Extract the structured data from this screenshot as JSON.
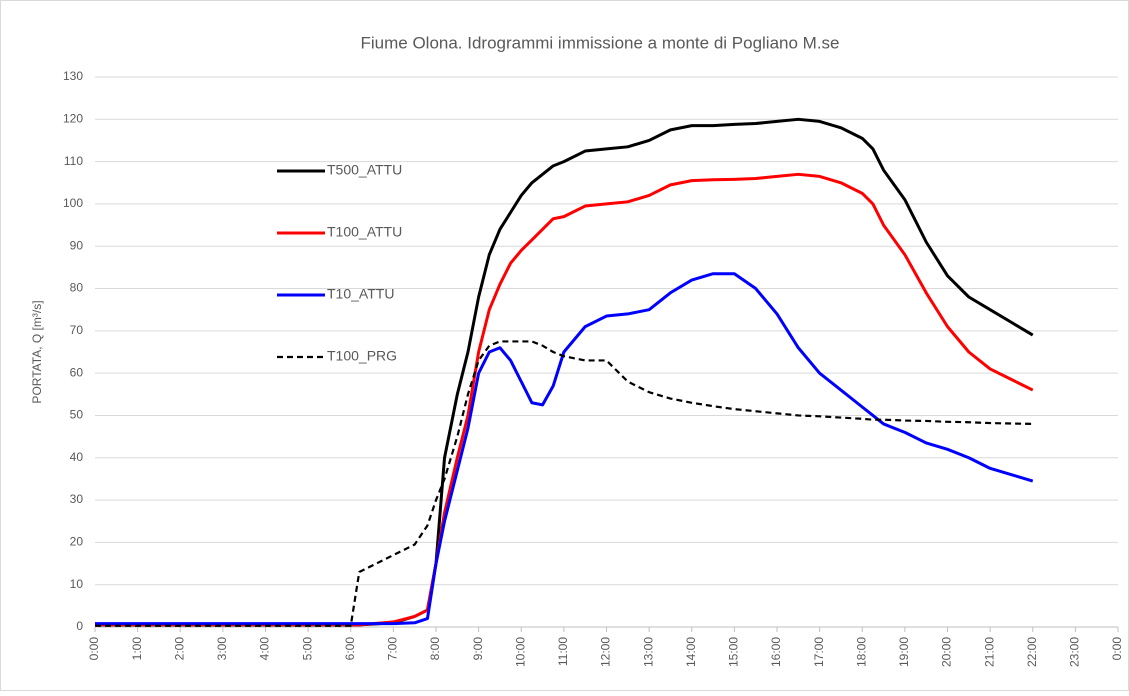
{
  "chart_data": {
    "type": "line",
    "title": "Fiume Olona. Idrogrammi immissione a monte di Pogliano M.se",
    "y_label": "PORTATA, Q [m³/s]",
    "x": [
      0,
      5.5,
      6,
      6.2,
      7,
      7.5,
      7.8,
      8,
      8.2,
      8.5,
      8.75,
      9,
      9.25,
      9.5,
      9.75,
      10,
      10.25,
      10.5,
      10.75,
      11,
      11.5,
      12,
      12.5,
      13,
      13.5,
      14,
      14.5,
      15,
      15.5,
      16,
      16.5,
      17,
      17.5,
      18,
      18.25,
      18.5,
      19,
      19.5,
      20,
      20.5,
      21,
      21.5,
      22
    ],
    "series": [
      {
        "name": "T500_ATTU",
        "color": "#000000",
        "dashed": false,
        "values": [
          0.5,
          0.5,
          0.5,
          0.5,
          1,
          2.5,
          4,
          15,
          40,
          55,
          65,
          78,
          88,
          94,
          98,
          102,
          105,
          107,
          109,
          110,
          112.5,
          113,
          113.5,
          115,
          117.5,
          118.5,
          118.5,
          118.8,
          119,
          119.5,
          120,
          119.5,
          118,
          115.5,
          113,
          108,
          101,
          91,
          83,
          78,
          75,
          72,
          69
        ]
      },
      {
        "name": "T100_ATTU",
        "color": "#ff0000",
        "dashed": false,
        "values": [
          0.5,
          0.5,
          0.5,
          0.5,
          1.2,
          2.5,
          4,
          15,
          27,
          40,
          50,
          65,
          75,
          81,
          86,
          89,
          91.5,
          94,
          96.5,
          97,
          99.5,
          100,
          100.5,
          102,
          104.5,
          105.5,
          105.7,
          105.8,
          106,
          106.5,
          107,
          106.5,
          105,
          102.5,
          100,
          95,
          88,
          79,
          71,
          65,
          61,
          58.5,
          56
        ]
      },
      {
        "name": "T10_ATTU",
        "color": "#0000ff",
        "dashed": false,
        "values": [
          0.8,
          0.8,
          0.8,
          0.8,
          0.8,
          1,
          2,
          15,
          25,
          37,
          47,
          60,
          65,
          66,
          63,
          58,
          53,
          52.5,
          57,
          65,
          71,
          73.5,
          74,
          75,
          79,
          82,
          83.5,
          83.5,
          80,
          74,
          66,
          60,
          56,
          52,
          50,
          48,
          46,
          43.5,
          42,
          40,
          37.5,
          36,
          34.5
        ]
      },
      {
        "name": "T100_PRG",
        "color": "#000000",
        "dashed": true,
        "values": [
          0.3,
          0.3,
          0.3,
          13,
          17,
          19.5,
          24,
          30,
          35,
          45,
          55,
          63,
          66.5,
          67.5,
          67.5,
          67.5,
          67.5,
          66.5,
          65,
          64,
          63,
          63,
          58,
          55.5,
          54,
          53,
          52.2,
          51.5,
          51,
          50.5,
          50,
          49.8,
          49.5,
          49.2,
          49,
          49,
          48.8,
          48.7,
          48.5,
          48.4,
          48.2,
          48.1,
          48
        ]
      }
    ],
    "xlim": [
      0,
      24
    ],
    "xticks": [
      {
        "value": 0,
        "label": "0:00"
      },
      {
        "value": 1,
        "label": "1:00"
      },
      {
        "value": 2,
        "label": "2:00"
      },
      {
        "value": 3,
        "label": "3:00"
      },
      {
        "value": 4,
        "label": "4:00"
      },
      {
        "value": 5,
        "label": "5:00"
      },
      {
        "value": 6,
        "label": "6:00"
      },
      {
        "value": 7,
        "label": "7:00"
      },
      {
        "value": 8,
        "label": "8:00"
      },
      {
        "value": 9,
        "label": "9:00"
      },
      {
        "value": 10,
        "label": "10:00"
      },
      {
        "value": 11,
        "label": "11:00"
      },
      {
        "value": 12,
        "label": "12:00"
      },
      {
        "value": 13,
        "label": "13:00"
      },
      {
        "value": 14,
        "label": "14:00"
      },
      {
        "value": 15,
        "label": "15:00"
      },
      {
        "value": 16,
        "label": "16:00"
      },
      {
        "value": 17,
        "label": "17:00"
      },
      {
        "value": 18,
        "label": "18:00"
      },
      {
        "value": 19,
        "label": "19:00"
      },
      {
        "value": 20,
        "label": "20:00"
      },
      {
        "value": 21,
        "label": "21:00"
      },
      {
        "value": 22,
        "label": "22:00"
      },
      {
        "value": 23,
        "label": "23:00"
      },
      {
        "value": 24,
        "label": "0:00"
      }
    ],
    "ylim": [
      0,
      130
    ],
    "yticks": [
      0,
      10,
      20,
      30,
      40,
      50,
      60,
      70,
      80,
      90,
      100,
      110,
      120,
      130
    ],
    "grid": true,
    "legend": "inside-left"
  }
}
